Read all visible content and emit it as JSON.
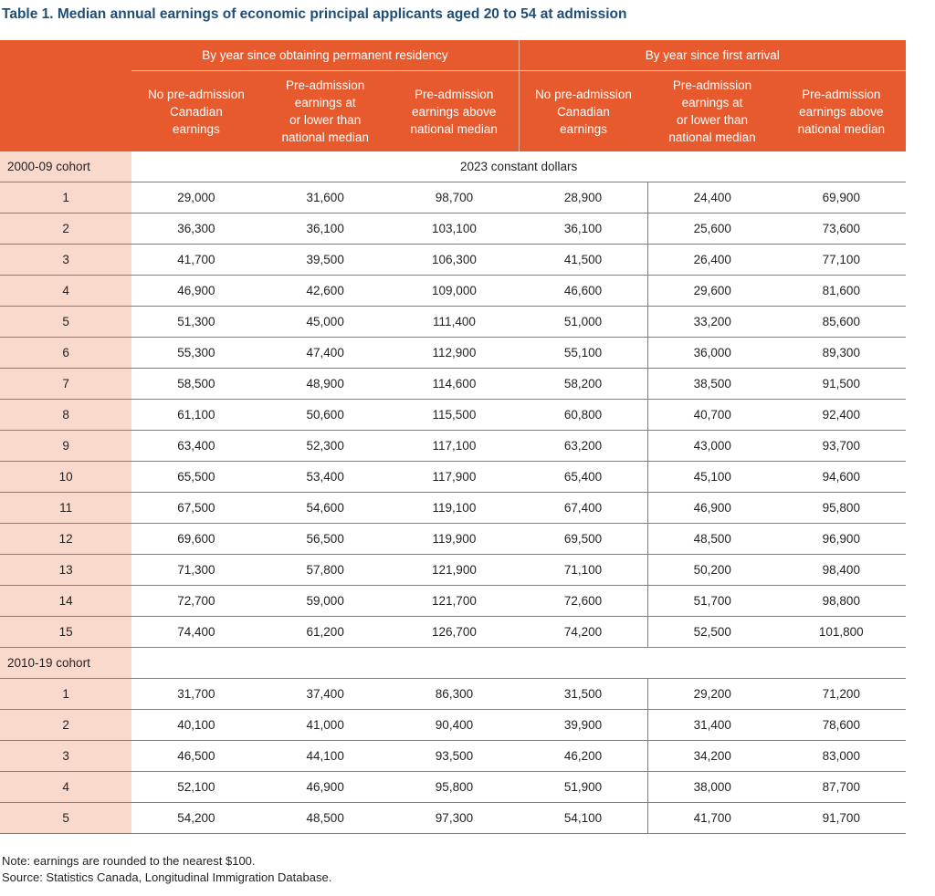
{
  "title": "Table 1. Median annual earnings of economic principal applicants aged 20 to 54 at admission",
  "header": {
    "group_left": "By year since obtaining permanent residency",
    "group_right": "By year since first arrival",
    "columns": [
      [
        "No pre-admission",
        "Canadian",
        "earnings"
      ],
      [
        "Pre-admission",
        "earnings at",
        "or lower than",
        "national median"
      ],
      [
        "Pre-admission",
        "earnings above",
        "national median"
      ],
      [
        "No pre-admission",
        "Canadian",
        "earnings"
      ],
      [
        "Pre-admission",
        "earnings at",
        "or lower than",
        "national median"
      ],
      [
        "Pre-admission",
        "earnings above",
        "national median"
      ]
    ]
  },
  "units_label": "2023 constant dollars",
  "cohorts": [
    {
      "label": "2000-09 cohort",
      "rows": [
        [
          "1",
          "29,000",
          "31,600",
          "98,700",
          "28,900",
          "24,400",
          "69,900"
        ],
        [
          "2",
          "36,300",
          "36,100",
          "103,100",
          "36,100",
          "25,600",
          "73,600"
        ],
        [
          "3",
          "41,700",
          "39,500",
          "106,300",
          "41,500",
          "26,400",
          "77,100"
        ],
        [
          "4",
          "46,900",
          "42,600",
          "109,000",
          "46,600",
          "29,600",
          "81,600"
        ],
        [
          "5",
          "51,300",
          "45,000",
          "111,400",
          "51,000",
          "33,200",
          "85,600"
        ],
        [
          "6",
          "55,300",
          "47,400",
          "112,900",
          "55,100",
          "36,000",
          "89,300"
        ],
        [
          "7",
          "58,500",
          "48,900",
          "114,600",
          "58,200",
          "38,500",
          "91,500"
        ],
        [
          "8",
          "61,100",
          "50,600",
          "115,500",
          "60,800",
          "40,700",
          "92,400"
        ],
        [
          "9",
          "63,400",
          "52,300",
          "117,100",
          "63,200",
          "43,000",
          "93,700"
        ],
        [
          "10",
          "65,500",
          "53,400",
          "117,900",
          "65,400",
          "45,100",
          "94,600"
        ],
        [
          "11",
          "67,500",
          "54,600",
          "119,100",
          "67,400",
          "46,900",
          "95,800"
        ],
        [
          "12",
          "69,600",
          "56,500",
          "119,900",
          "69,500",
          "48,500",
          "96,900"
        ],
        [
          "13",
          "71,300",
          "57,800",
          "121,900",
          "71,100",
          "50,200",
          "98,400"
        ],
        [
          "14",
          "72,700",
          "59,000",
          "121,700",
          "72,600",
          "51,700",
          "98,800"
        ],
        [
          "15",
          "74,400",
          "61,200",
          "126,700",
          "74,200",
          "52,500",
          "101,800"
        ]
      ]
    },
    {
      "label": "2010-19 cohort",
      "rows": [
        [
          "1",
          "31,700",
          "37,400",
          "86,300",
          "31,500",
          "29,200",
          "71,200"
        ],
        [
          "2",
          "40,100",
          "41,000",
          "90,400",
          "39,900",
          "31,400",
          "78,600"
        ],
        [
          "3",
          "46,500",
          "44,100",
          "93,500",
          "46,200",
          "34,200",
          "83,000"
        ],
        [
          "4",
          "52,100",
          "46,900",
          "95,800",
          "51,900",
          "38,000",
          "87,700"
        ],
        [
          "5",
          "54,200",
          "48,500",
          "97,300",
          "54,100",
          "41,700",
          "91,700"
        ]
      ]
    }
  ],
  "notes": [
    "Note: earnings are rounded to the nearest $100.",
    "Source: Statistics Canada, Longitudinal Immigration Database."
  ],
  "colors": {
    "header_bg": "#e65a2e",
    "row_label_bg": "#f9d9cb",
    "title": "#1f4e79"
  }
}
